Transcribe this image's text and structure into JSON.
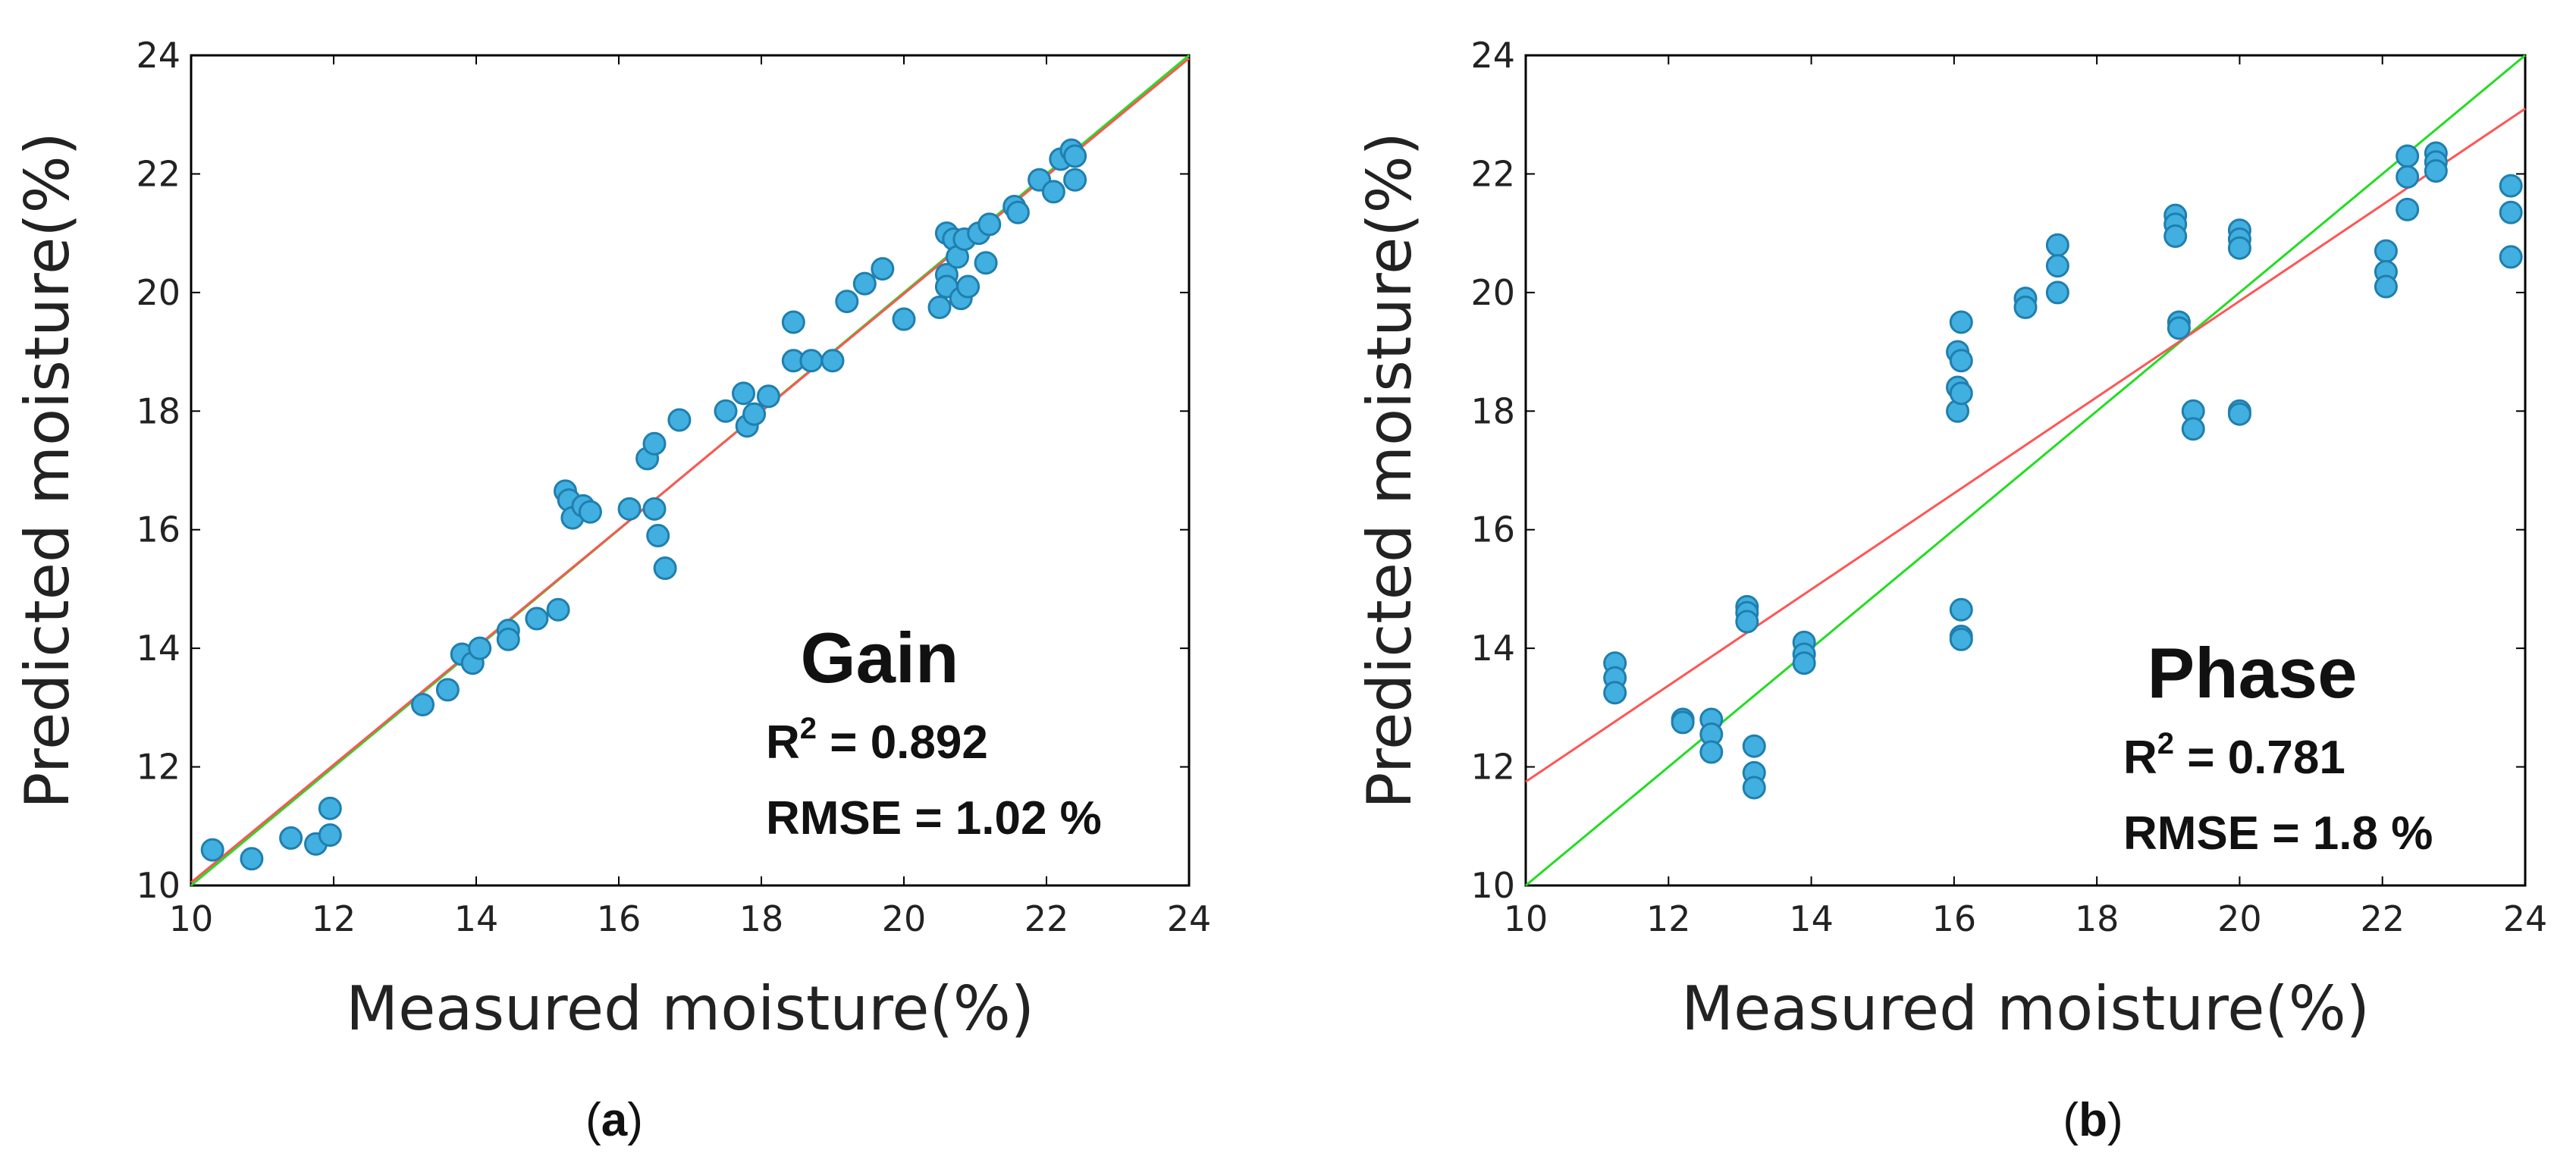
{
  "chart_data": [
    {
      "type": "scatter",
      "caption": {
        "open": "(",
        "letter": "a",
        "close": ")"
      },
      "xlabel": "Measured moisture(%)",
      "ylabel": "Predicted moisture(%)",
      "xlim": [
        10,
        24
      ],
      "ylim": [
        10,
        24
      ],
      "xticks": [
        "10",
        "12",
        "14",
        "16",
        "18",
        "20",
        "22",
        "24"
      ],
      "yticks": [
        "10",
        "12",
        "14",
        "16",
        "18",
        "20",
        "22",
        "24"
      ],
      "annotation": {
        "title": "Gain",
        "r2_label": "R",
        "r2_sup": "2",
        "r2_value": " = 0.892",
        "rmse": "RMSE = 1.02 %"
      },
      "lines": [
        {
          "name": "1:1 line",
          "color": "#22dd22",
          "x": [
            10,
            24
          ],
          "y": [
            10,
            24
          ]
        },
        {
          "name": "fit",
          "color": "#ff5555",
          "x": [
            10,
            24
          ],
          "y": [
            10.05,
            23.95
          ]
        }
      ],
      "marker_color": "#41afe0",
      "points": [
        [
          10.3,
          10.6
        ],
        [
          10.85,
          10.45
        ],
        [
          11.4,
          10.8
        ],
        [
          11.75,
          10.7
        ],
        [
          11.95,
          10.85
        ],
        [
          11.95,
          11.3
        ],
        [
          13.25,
          13.05
        ],
        [
          13.6,
          13.3
        ],
        [
          13.8,
          13.9
        ],
        [
          13.95,
          13.75
        ],
        [
          14.05,
          14.0
        ],
        [
          14.45,
          14.3
        ],
        [
          14.45,
          14.15
        ],
        [
          14.85,
          14.5
        ],
        [
          15.15,
          14.65
        ],
        [
          15.25,
          16.65
        ],
        [
          15.3,
          16.5
        ],
        [
          15.35,
          16.2
        ],
        [
          15.5,
          16.4
        ],
        [
          15.6,
          16.3
        ],
        [
          16.15,
          16.35
        ],
        [
          16.4,
          17.2
        ],
        [
          16.5,
          17.45
        ],
        [
          16.5,
          16.35
        ],
        [
          16.55,
          15.9
        ],
        [
          16.65,
          15.35
        ],
        [
          16.85,
          17.85
        ],
        [
          17.5,
          18.0
        ],
        [
          17.75,
          18.3
        ],
        [
          17.8,
          17.75
        ],
        [
          17.9,
          17.95
        ],
        [
          18.1,
          18.25
        ],
        [
          18.45,
          19.5
        ],
        [
          18.45,
          18.85
        ],
        [
          18.7,
          18.85
        ],
        [
          19.0,
          18.85
        ],
        [
          19.2,
          19.85
        ],
        [
          19.45,
          20.15
        ],
        [
          19.7,
          20.4
        ],
        [
          20.0,
          19.55
        ],
        [
          20.5,
          19.75
        ],
        [
          20.6,
          21.0
        ],
        [
          20.6,
          20.3
        ],
        [
          20.6,
          20.1
        ],
        [
          20.7,
          20.9
        ],
        [
          20.75,
          20.6
        ],
        [
          20.8,
          19.9
        ],
        [
          20.85,
          20.9
        ],
        [
          20.9,
          20.1
        ],
        [
          21.05,
          21.0
        ],
        [
          21.15,
          20.5
        ],
        [
          21.2,
          21.15
        ],
        [
          21.55,
          21.45
        ],
        [
          21.6,
          21.35
        ],
        [
          21.9,
          21.9
        ],
        [
          22.1,
          21.7
        ],
        [
          22.2,
          22.25
        ],
        [
          22.35,
          22.4
        ],
        [
          22.4,
          22.3
        ],
        [
          22.4,
          21.9
        ]
      ]
    },
    {
      "type": "scatter",
      "caption": {
        "open": "(",
        "letter": "b",
        "close": ")"
      },
      "xlabel": "Measured moisture(%)",
      "ylabel": "Predicted moisture(%)",
      "xlim": [
        10,
        24
      ],
      "ylim": [
        10,
        24
      ],
      "xticks": [
        "10",
        "12",
        "14",
        "16",
        "18",
        "20",
        "22",
        "24"
      ],
      "yticks": [
        "10",
        "12",
        "14",
        "16",
        "18",
        "20",
        "22",
        "24"
      ],
      "annotation": {
        "title": "Phase",
        "r2_label": "R",
        "r2_sup": "2",
        "r2_value": " = 0.781",
        "rmse": "RMSE = 1.8 %"
      },
      "lines": [
        {
          "name": "1:1 line",
          "color": "#22dd22",
          "x": [
            10,
            24
          ],
          "y": [
            10,
            24
          ]
        },
        {
          "name": "fit",
          "color": "#ff5555",
          "x": [
            10,
            24
          ],
          "y": [
            11.75,
            23.1
          ]
        }
      ],
      "marker_color": "#41afe0",
      "points": [
        [
          11.25,
          13.75
        ],
        [
          11.25,
          13.5
        ],
        [
          11.25,
          13.25
        ],
        [
          12.2,
          12.8
        ],
        [
          12.2,
          12.75
        ],
        [
          12.6,
          12.8
        ],
        [
          12.6,
          12.55
        ],
        [
          12.6,
          12.25
        ],
        [
          13.1,
          14.7
        ],
        [
          13.1,
          14.6
        ],
        [
          13.1,
          14.45
        ],
        [
          13.2,
          12.35
        ],
        [
          13.2,
          11.9
        ],
        [
          13.2,
          11.65
        ],
        [
          13.9,
          14.1
        ],
        [
          13.9,
          13.9
        ],
        [
          13.9,
          13.75
        ],
        [
          16.05,
          19.0
        ],
        [
          16.05,
          18.4
        ],
        [
          16.05,
          18.0
        ],
        [
          16.1,
          19.5
        ],
        [
          16.1,
          18.85
        ],
        [
          16.1,
          18.3
        ],
        [
          16.1,
          14.65
        ],
        [
          16.1,
          14.2
        ],
        [
          16.1,
          14.15
        ],
        [
          17.0,
          19.9
        ],
        [
          17.0,
          19.75
        ],
        [
          17.45,
          20.8
        ],
        [
          17.45,
          20.45
        ],
        [
          17.45,
          20.0
        ],
        [
          19.1,
          21.3
        ],
        [
          19.1,
          21.15
        ],
        [
          19.1,
          20.95
        ],
        [
          19.15,
          19.5
        ],
        [
          19.15,
          19.4
        ],
        [
          19.35,
          18.0
        ],
        [
          19.35,
          17.7
        ],
        [
          20.0,
          21.05
        ],
        [
          20.0,
          20.9
        ],
        [
          20.0,
          20.75
        ],
        [
          20.0,
          18.0
        ],
        [
          20.0,
          17.95
        ],
        [
          22.05,
          20.7
        ],
        [
          22.05,
          20.35
        ],
        [
          22.05,
          20.1
        ],
        [
          22.35,
          22.3
        ],
        [
          22.35,
          21.95
        ],
        [
          22.35,
          21.4
        ],
        [
          22.75,
          22.35
        ],
        [
          22.75,
          22.2
        ],
        [
          22.75,
          22.05
        ],
        [
          23.8,
          21.8
        ],
        [
          23.8,
          21.35
        ],
        [
          23.8,
          20.6
        ]
      ]
    }
  ]
}
